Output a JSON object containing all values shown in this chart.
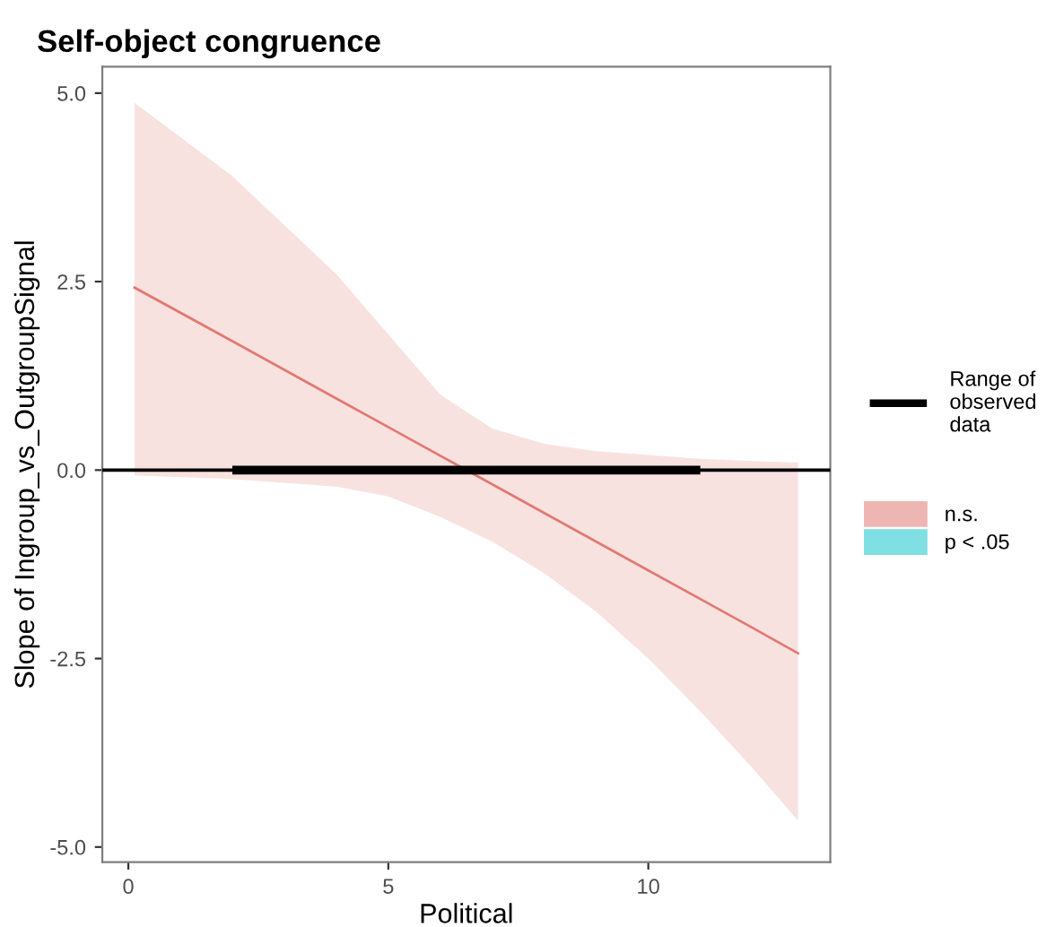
{
  "chart_data": {
    "type": "line",
    "title": "Self-object congruence",
    "xlabel": "Political",
    "ylabel": "Slope of Ingroup_vs_OutgroupSignal",
    "xlim": [
      -0.5,
      13.5
    ],
    "xticks": [
      0,
      5,
      10
    ],
    "ylim": [
      -5.2,
      5.35
    ],
    "yticks": [
      {
        "value": -5,
        "label": "-5.0"
      },
      {
        "value": -2.5,
        "label": "-2.5"
      },
      {
        "value": 0,
        "label": "0.0"
      },
      {
        "value": 2.5,
        "label": "2.5"
      },
      {
        "value": 5,
        "label": "5.0"
      }
    ],
    "grid": false,
    "legend": "right",
    "ref_lines": [
      {
        "axis": "y",
        "value": 0,
        "color": "#000000"
      }
    ],
    "series": [
      {
        "name": "Range of observed data",
        "type": "line",
        "color": "#000000",
        "x": [
          2,
          11
        ],
        "values": [
          0,
          0
        ]
      },
      {
        "name": "n.s.",
        "type": "line",
        "color": "#e07a72",
        "x": [
          0.12,
          2,
          4,
          5,
          6,
          7,
          8,
          9,
          10,
          11,
          12,
          12.88
        ],
        "values": [
          2.42,
          1.71,
          0.95,
          0.57,
          0.19,
          -0.19,
          -0.57,
          -0.95,
          -1.33,
          -1.71,
          -2.09,
          -2.43
        ],
        "lower": [
          -0.07,
          -0.12,
          -0.22,
          -0.35,
          -0.62,
          -0.95,
          -1.37,
          -1.88,
          -2.5,
          -3.2,
          -3.95,
          -4.65
        ],
        "upper": [
          4.87,
          3.9,
          2.6,
          1.8,
          1.0,
          0.55,
          0.35,
          0.25,
          0.2,
          0.15,
          0.12,
          0.1
        ]
      },
      {
        "name": "p < .05",
        "type": "area",
        "color": "#7fdfe2"
      }
    ]
  }
}
